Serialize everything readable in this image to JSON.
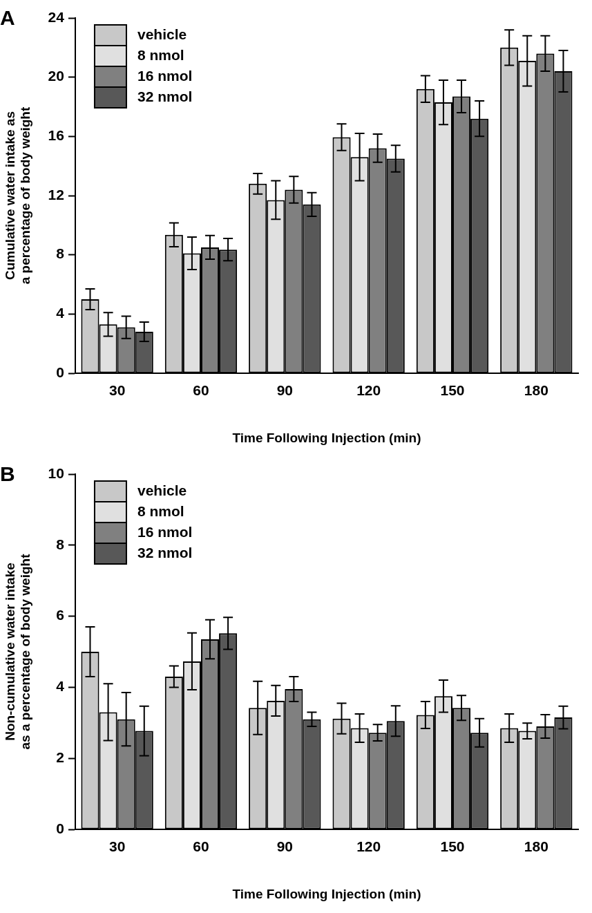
{
  "chart_data": [
    {
      "type": "bar",
      "title": "A",
      "xlabel": "Time Following Injection (min)",
      "ylabel": "Cumulative water intake as a percentage of body weight",
      "categories": [
        "30",
        "60",
        "90",
        "120",
        "150",
        "180"
      ],
      "series": [
        {
          "name": "vehicle",
          "color": "#c8c8c8",
          "values": [
            5.0,
            9.35,
            12.8,
            15.95,
            19.2,
            22.0
          ],
          "errors": [
            0.7,
            0.8,
            0.7,
            0.9,
            0.9,
            1.2
          ]
        },
        {
          "name": "8 nmol",
          "color": "#e0e0e0",
          "values": [
            3.3,
            8.1,
            11.7,
            14.6,
            18.3,
            21.1
          ],
          "errors": [
            0.8,
            1.1,
            1.3,
            1.6,
            1.5,
            1.7
          ]
        },
        {
          "name": "16 nmol",
          "color": "#808080",
          "values": [
            3.1,
            8.5,
            12.4,
            15.2,
            18.7,
            21.6
          ],
          "errors": [
            0.75,
            0.8,
            0.9,
            0.95,
            1.1,
            1.2
          ]
        },
        {
          "name": "32 nmol",
          "color": "#585858",
          "values": [
            2.8,
            8.35,
            11.4,
            14.5,
            17.2,
            20.4
          ],
          "errors": [
            0.65,
            0.75,
            0.8,
            0.9,
            1.2,
            1.4
          ]
        }
      ],
      "ylim": [
        0,
        24
      ],
      "yticks": [
        0,
        4,
        8,
        12,
        16,
        20,
        24
      ],
      "grid": false,
      "legend": "top left"
    },
    {
      "type": "bar",
      "title": "B",
      "xlabel": "Time Following Injection (min)",
      "ylabel": "Non-cumulative water intake as a percentage of body weight",
      "categories": [
        "30",
        "60",
        "90",
        "120",
        "150",
        "180"
      ],
      "series": [
        {
          "name": "vehicle",
          "color": "#c8c8c8",
          "values": [
            5.0,
            4.3,
            3.42,
            3.12,
            3.22,
            2.85
          ],
          "errors": [
            0.7,
            0.3,
            0.75,
            0.43,
            0.38,
            0.4
          ]
        },
        {
          "name": "8 nmol",
          "color": "#e0e0e0",
          "values": [
            3.3,
            4.73,
            3.62,
            2.85,
            3.75,
            2.77
          ],
          "errors": [
            0.8,
            0.8,
            0.43,
            0.4,
            0.45,
            0.22
          ]
        },
        {
          "name": "16 nmol",
          "color": "#808080",
          "values": [
            3.1,
            5.35,
            3.95,
            2.72,
            3.42,
            2.9
          ],
          "errors": [
            0.75,
            0.55,
            0.35,
            0.23,
            0.35,
            0.33
          ]
        },
        {
          "name": "32 nmol",
          "color": "#585858",
          "values": [
            2.77,
            5.52,
            3.1,
            3.05,
            2.72,
            3.15
          ],
          "errors": [
            0.7,
            0.45,
            0.2,
            0.43,
            0.4,
            0.32
          ]
        }
      ],
      "ylim": [
        0,
        10
      ],
      "yticks": [
        0,
        2,
        4,
        6,
        8,
        10
      ],
      "grid": false,
      "legend": "top left"
    }
  ]
}
